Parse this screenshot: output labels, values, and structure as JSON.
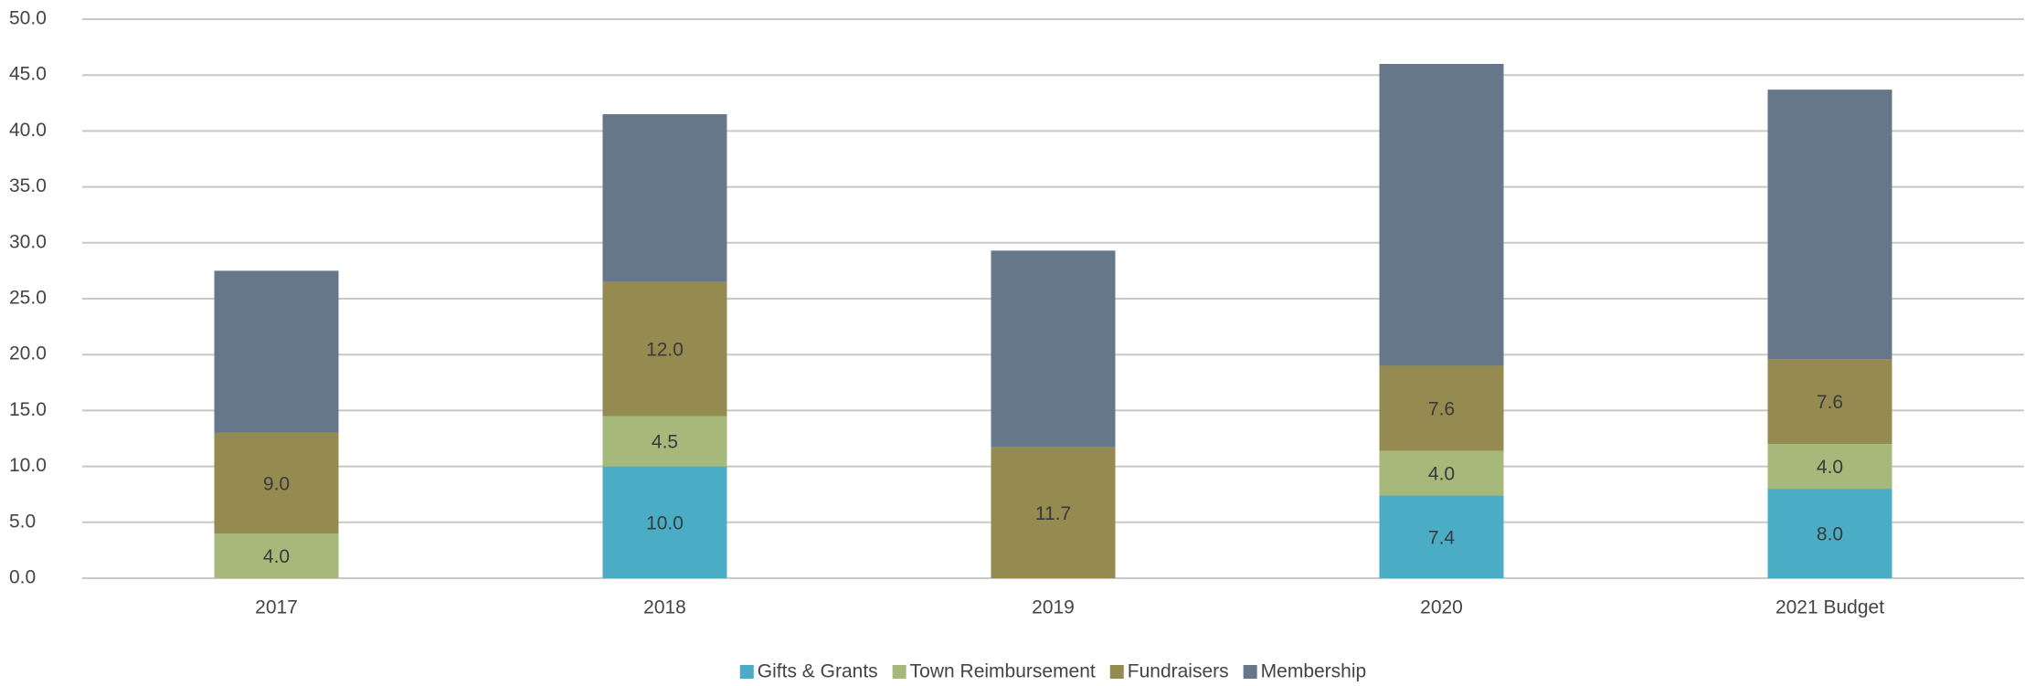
{
  "chart_data": {
    "type": "stacked_bar",
    "categories": [
      "2017",
      "2018",
      "2019",
      "2020",
      "2021 Budget"
    ],
    "series": [
      {
        "name": "Gifts & Grants",
        "color": "#4bacc6",
        "values": [
          null,
          10.0,
          null,
          7.4,
          8.0
        ],
        "value_labels": [
          null,
          "10.0",
          null,
          "7.4",
          "8.0"
        ]
      },
      {
        "name": "Town Reimbursement",
        "color": "#a6b97a",
        "values": [
          4.0,
          4.5,
          null,
          4.0,
          4.0
        ],
        "value_labels": [
          "4.0",
          "4.5",
          null,
          "4.0",
          "4.0"
        ]
      },
      {
        "name": "Fundraisers",
        "color": "#958a4f",
        "values": [
          9.0,
          12.0,
          11.7,
          7.6,
          7.6
        ],
        "value_labels": [
          "9.0",
          "12.0",
          "11.7",
          "7.6",
          "7.6"
        ]
      },
      {
        "name": "Membership",
        "color": "#67778a",
        "values": [
          14.5,
          15.0,
          17.6,
          27.0,
          24.1
        ]
      }
    ],
    "ylim": [
      0,
      50
    ],
    "yticks": [
      {
        "value": 0,
        "label": "0.0"
      },
      {
        "value": 5,
        "label": "5.0"
      },
      {
        "value": 10,
        "label": "10.0"
      },
      {
        "value": 15,
        "label": "15.0"
      },
      {
        "value": 20,
        "label": "20.0"
      },
      {
        "value": 25,
        "label": "25.0"
      },
      {
        "value": 30,
        "label": "30.0"
      },
      {
        "value": 35,
        "label": "35.0"
      },
      {
        "value": 40,
        "label": "40.0"
      },
      {
        "value": 45,
        "label": "45.0"
      },
      {
        "value": 50,
        "label": "50.0"
      }
    ],
    "grid": true,
    "legend": "bottom"
  }
}
